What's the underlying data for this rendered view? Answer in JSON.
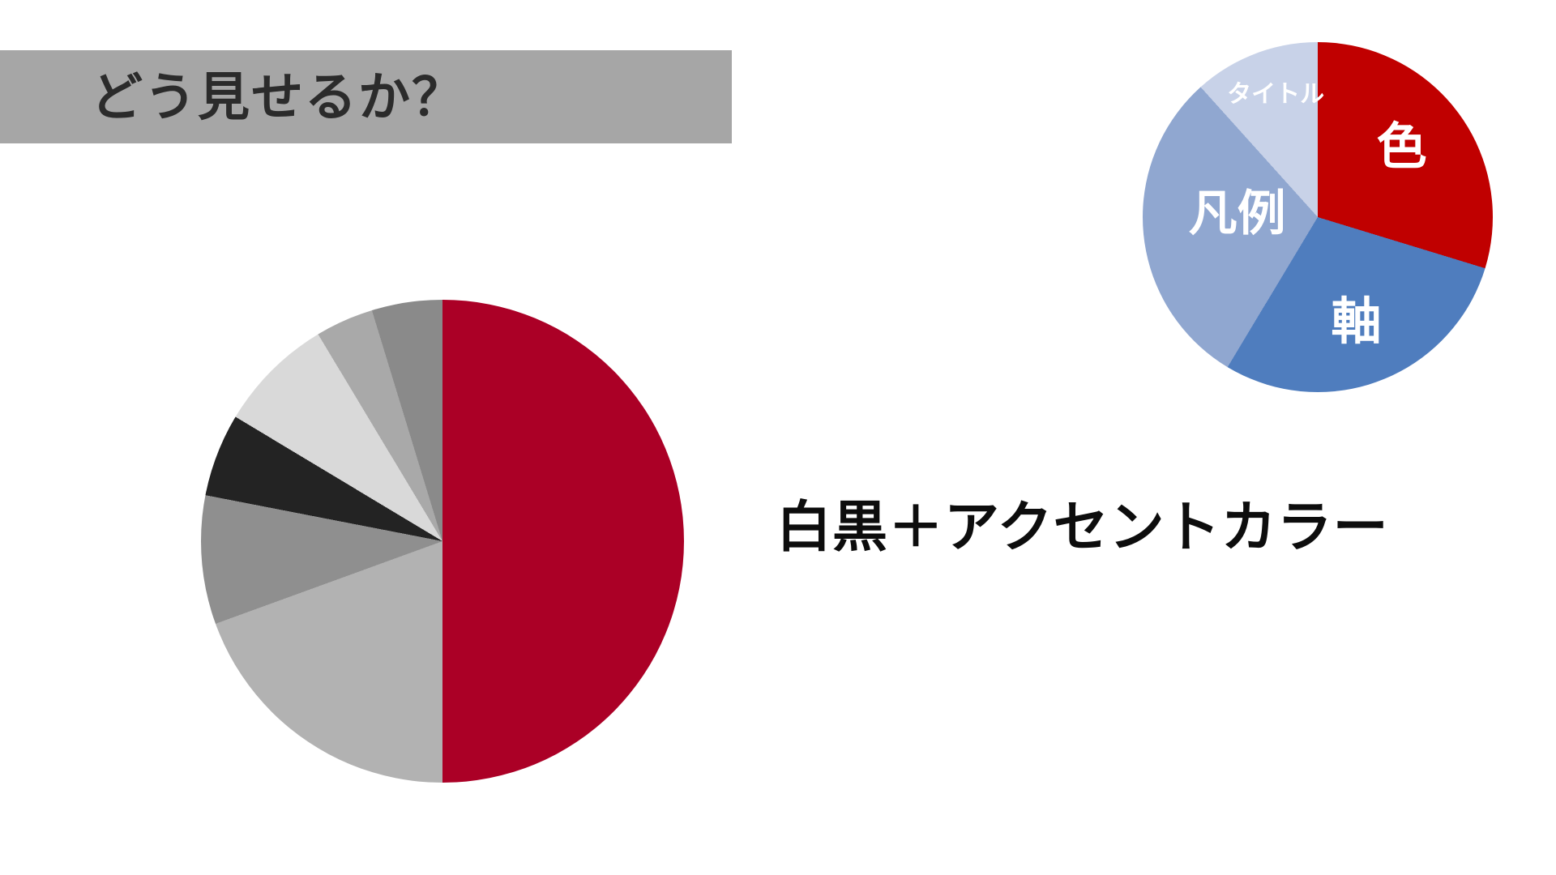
{
  "slide": {
    "title": "どう見せるか？",
    "caption": "白黒＋アクセントカラー"
  },
  "colors": {
    "title_bar_bg": "#A6A6A6",
    "title_text": "#2B2B2B",
    "accent_red_large_pie": "#AB0026",
    "accent_red_small_pie": "#C00000",
    "background": "#FFFFFF"
  },
  "chart_data": [
    {
      "id": "bw-accent-pie",
      "type": "pie",
      "title": "",
      "legend": "none",
      "description": "Large demonstration pie: right half in red accent color, left half in grayscale wedges",
      "slices": [
        {
          "label": "",
          "color": "#AB0026",
          "start_deg": 0,
          "end_deg": 180,
          "percent": 50.0
        },
        {
          "label": "",
          "color": "#B2B2B2",
          "start_deg": 180,
          "end_deg": 250,
          "percent": 19.4
        },
        {
          "label": "",
          "color": "#8F8F8F",
          "start_deg": 250,
          "end_deg": 281,
          "percent": 8.6
        },
        {
          "label": "",
          "color": "#232323",
          "start_deg": 281,
          "end_deg": 301,
          "percent": 5.6
        },
        {
          "label": "",
          "color": "#D9D9D9",
          "start_deg": 301,
          "end_deg": 329,
          "percent": 7.8
        },
        {
          "label": "",
          "color": "#A9A9A9",
          "start_deg": 329,
          "end_deg": 343,
          "percent": 3.9
        },
        {
          "label": "",
          "color": "#8A8A8A",
          "start_deg": 343,
          "end_deg": 360,
          "percent": 4.7
        }
      ]
    },
    {
      "id": "chart-elements-pie",
      "type": "pie",
      "title": "",
      "legend": "none",
      "description": "Small pie naming chart elements: color, axis, legend, title",
      "slices": [
        {
          "label": "色",
          "color": "#C00000",
          "start_deg": 0,
          "end_deg": 107,
          "percent": 29.7,
          "label_x_pct": 74,
          "label_y_pct": 30
        },
        {
          "label": "軸",
          "color": "#4F7DBE",
          "start_deg": 107,
          "end_deg": 211,
          "percent": 28.9,
          "label_x_pct": 61,
          "label_y_pct": 80
        },
        {
          "label": "凡例",
          "color": "#90A7D0",
          "start_deg": 211,
          "end_deg": 318,
          "percent": 29.7,
          "label_x_pct": 27,
          "label_y_pct": 49
        },
        {
          "label": "タイトル",
          "color": "#C8D2E8",
          "start_deg": 318,
          "end_deg": 360,
          "percent": 11.7,
          "label_x_pct": 38,
          "label_y_pct": 15
        }
      ]
    }
  ]
}
